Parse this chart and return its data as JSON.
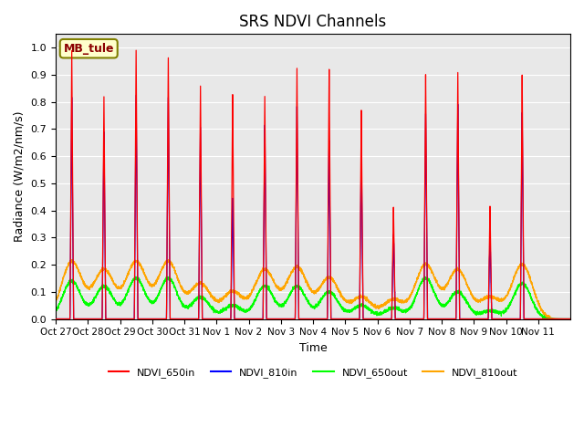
{
  "title": "SRS NDVI Channels",
  "xlabel": "Time",
  "ylabel": "Radiance (W/m2/nm/s)",
  "ylim": [
    0.0,
    1.05
  ],
  "site_label": "MB_tule",
  "legend_labels": [
    "NDVI_650in",
    "NDVI_810in",
    "NDVI_650out",
    "NDVI_810out"
  ],
  "legend_colors": [
    "red",
    "blue",
    "lime",
    "orange"
  ],
  "tick_labels": [
    "Oct 27",
    "Oct 28",
    "Oct 29",
    "Oct 30",
    "Oct 31",
    "Nov 1",
    "Nov 2",
    "Nov 3",
    "Nov 4",
    "Nov 5",
    "Nov 6",
    "Nov 7",
    "Nov 8",
    "Nov 9",
    "Nov 10",
    "Nov 11"
  ],
  "day_peaks_650in": [
    0.99,
    0.82,
    0.99,
    0.97,
    0.86,
    0.83,
    0.82,
    0.93,
    0.93,
    0.77,
    0.41,
    0.91,
    0.91,
    0.41,
    0.9,
    0.0
  ],
  "day_peaks_810in": [
    0.81,
    0.69,
    0.82,
    0.81,
    0.71,
    0.44,
    0.71,
    0.78,
    0.65,
    0.62,
    0.32,
    0.76,
    0.79,
    0.31,
    0.76,
    0.0
  ],
  "day_peaks_650out": [
    0.14,
    0.12,
    0.15,
    0.15,
    0.08,
    0.05,
    0.12,
    0.12,
    0.1,
    0.05,
    0.04,
    0.15,
    0.1,
    0.03,
    0.13,
    0.0
  ],
  "day_peaks_810out": [
    0.21,
    0.18,
    0.21,
    0.21,
    0.13,
    0.1,
    0.18,
    0.19,
    0.15,
    0.08,
    0.07,
    0.2,
    0.18,
    0.08,
    0.2,
    0.0
  ],
  "background_color": "#e8e8e8",
  "num_days": 16,
  "points_per_day": 300
}
